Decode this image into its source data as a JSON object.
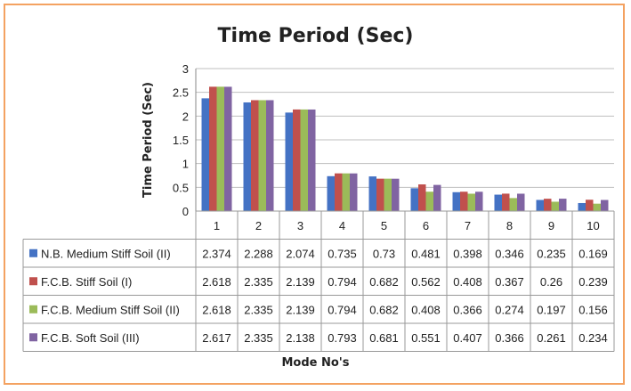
{
  "chart_data": {
    "type": "bar",
    "title": "Time Period (Sec)",
    "xlabel": "Mode No's",
    "ylabel": "Time  Period (Sec)",
    "ylim": [
      0,
      3
    ],
    "yticks": [
      "0",
      "0.5",
      "1",
      "1.5",
      "2",
      "2.5",
      "3"
    ],
    "categories": [
      "1",
      "2",
      "3",
      "4",
      "5",
      "6",
      "7",
      "8",
      "9",
      "10"
    ],
    "grid": true,
    "legend": "data-table",
    "series": [
      {
        "name": "N.B. Medium Stiff Soil (II)",
        "color": "#4472c4",
        "labels": [
          "2.374",
          "2.288",
          "2.074",
          "0.735",
          "0.73",
          "0.481",
          "0.398",
          "0.346",
          "0.235",
          "0.169"
        ],
        "values": [
          2.374,
          2.288,
          2.074,
          0.735,
          0.73,
          0.481,
          0.398,
          0.346,
          0.235,
          0.169
        ]
      },
      {
        "name": "F.C.B. Stiff Soil (I)",
        "color": "#c0504d",
        "labels": [
          "2.618",
          "2.335",
          "2.139",
          "0.794",
          "0.682",
          "0.562",
          "0.408",
          "0.367",
          "0.26",
          "0.239"
        ],
        "values": [
          2.618,
          2.335,
          2.139,
          0.794,
          0.682,
          0.562,
          0.408,
          0.367,
          0.26,
          0.239
        ]
      },
      {
        "name": "F.C.B. Medium Stiff Soil (II)",
        "color": "#9bbb59",
        "labels": [
          "2.618",
          "2.335",
          "2.139",
          "0.794",
          "0.682",
          "0.408",
          "0.366",
          "0.274",
          "0.197",
          "0.156"
        ],
        "values": [
          2.618,
          2.335,
          2.139,
          0.794,
          0.682,
          0.408,
          0.366,
          0.274,
          0.197,
          0.156
        ]
      },
      {
        "name": "F.C.B. Soft Soil (III)",
        "color": "#8064a2",
        "labels": [
          "2.617",
          "2.335",
          "2.138",
          "0.793",
          "0.681",
          "0.551",
          "0.407",
          "0.366",
          "0.261",
          "0.234"
        ],
        "values": [
          2.617,
          2.335,
          2.138,
          0.793,
          0.681,
          0.551,
          0.407,
          0.366,
          0.261,
          0.234
        ]
      }
    ]
  }
}
